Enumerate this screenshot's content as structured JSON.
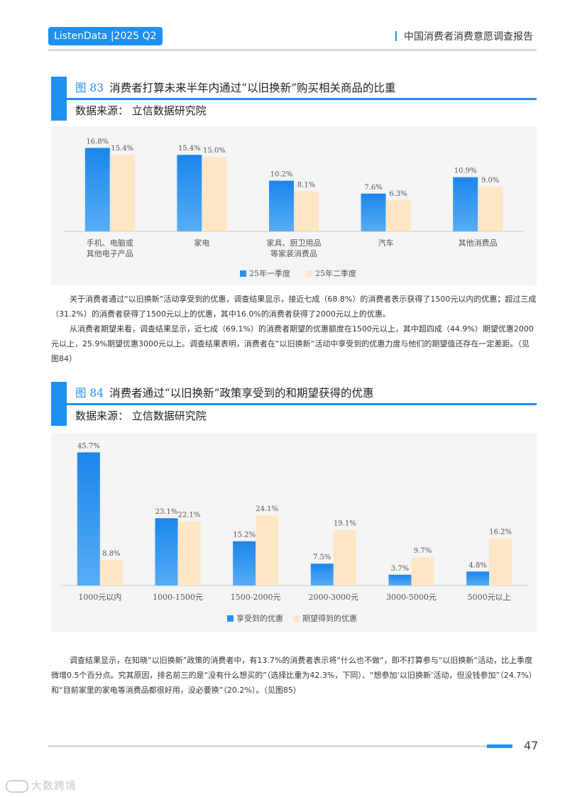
{
  "header": {
    "brand": "ListenData |2025 Q2",
    "report_title": "中国消费者消费意愿调查报告"
  },
  "figure83": {
    "number": "图 83",
    "title": "消费者打算未来半年内通过“以旧换新”购买相关商品的比重",
    "source": "数据来源：  立信数据研究院"
  },
  "figure84": {
    "number": "图 84",
    "title": "消费者通过“以旧换新”政策享受到的和期望获得的优惠",
    "source": "数据来源：  立信数据研究院"
  },
  "paragraphs": {
    "p1": "关于消费者通过“以旧换新”活动享受到的优惠，调查结果显示，接近七成（68.8%）的消费者表示获得了1500元以内的优惠；超过三成（31.2%）的消费者获得了1500元以上的优惠，其中16.0%的消费者获得了2000元以上的优惠。",
    "p2": "从消费者期望来看，调查结果显示，近七成（69.1%）的消费者期望的优惠额度在1500元以上，其中超四成（44.9%）期望优惠2000元以上，25.9%期望优惠3000元以上。调查结果表明，消费者在“以旧换新”活动中享受到的优惠力度与他们的期望值还存在一定差距。（见图84）",
    "p3": "调查结果显示，在知晓“以旧换新”政策的消费者中，有13.7%的消费者表示将“什么也不做”，即不打算参与“以旧换新”活动，比上季度微增0.5个百分点。究其原因，排名前三的是“没有什么想买的”（选择比重为42.3%，下同）、“想参加‘以旧换新’活动，但没钱参加”（24.7%）和“目前家里的家电等消费品都很好用，没必要换”（20.2%）。（见图85）"
  },
  "footer": {
    "page": "47",
    "watermark": "大数跨境"
  },
  "colors": {
    "accent": "#1f8ff0",
    "series_blue": "#2a90ee",
    "series_cream": "#fde6c4"
  },
  "chart_data": [
    {
      "type": "bar",
      "categories": [
        "手机、电脑或\n其他电子产品",
        "家电",
        "家具、厨卫用品\n等家装消费品",
        "汽车",
        "其他消费品"
      ],
      "series": [
        {
          "name": "25年一季度",
          "values": [
            16.8,
            15.4,
            10.2,
            7.6,
            10.9
          ]
        },
        {
          "name": "25年二季度",
          "values": [
            15.4,
            15.0,
            8.1,
            6.3,
            9.0
          ]
        }
      ],
      "value_suffix": "%",
      "ylim": [
        0,
        18
      ],
      "legend": "bottom",
      "grid": false
    },
    {
      "type": "bar",
      "categories": [
        "1000元以内",
        "1000-1500元",
        "1500-2000元",
        "2000-3000元",
        "3000-5000元",
        "5000元以上"
      ],
      "series": [
        {
          "name": "享受到的优惠",
          "values": [
            45.7,
            23.1,
            15.2,
            7.5,
            3.7,
            4.8
          ]
        },
        {
          "name": "期望得到的优惠",
          "values": [
            8.8,
            22.1,
            24.1,
            19.1,
            9.7,
            16.2
          ]
        }
      ],
      "value_suffix": "%",
      "ylim": [
        0,
        48
      ],
      "legend": "bottom",
      "grid": false
    }
  ]
}
